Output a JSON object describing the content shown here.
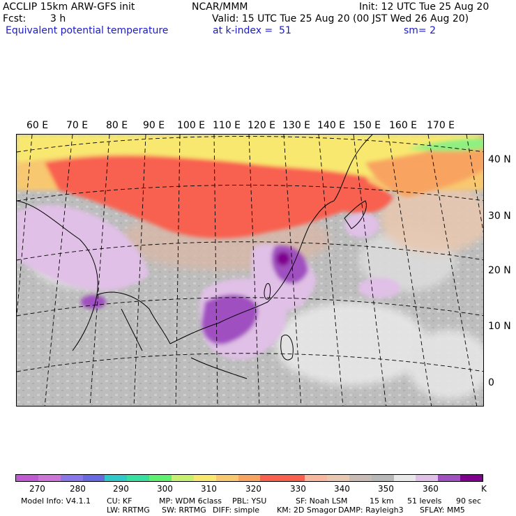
{
  "header": {
    "model": "ACCLIP 15km ARW-GFS init",
    "org": "NCAR/MMM",
    "init": "Init: 12 UTC Tue 25 Aug 20",
    "fcst_label": "Fcst:",
    "fcst_value": "3 h",
    "valid": "Valid: 15 UTC Tue 25 Aug 20 (00 JST Wed 26 Aug 20)",
    "field": "Equivalent potential temperature",
    "level": "at k-index =  51",
    "smoothing": "sm= 2"
  },
  "lon_labels": [
    "60 E",
    "70 E",
    "80 E",
    "90 E",
    "100 E",
    "110 E",
    "120 E",
    "130 E",
    "140 E",
    "150 E",
    "160 E",
    "170 E"
  ],
  "lat_labels": [
    "40 N",
    "30 N",
    "20 N",
    "10 N",
    "0"
  ],
  "colorbar": {
    "colors": [
      "#c05ad0",
      "#cc75d6",
      "#8a78e8",
      "#6a6ae0",
      "#30c8c8",
      "#37e0a0",
      "#60f070",
      "#c8f070",
      "#f8e870",
      "#f8c870",
      "#f8a460",
      "#f86050",
      "#f86050",
      "#f8b8a0",
      "#e8c8b0",
      "#c8bcb4",
      "#b8b8b8",
      "#e8e8e8",
      "#e0c0e6",
      "#a050c0",
      "#800090"
    ],
    "ticks": [
      "270",
      "280",
      "290",
      "300",
      "310",
      "320",
      "330",
      "340",
      "350",
      "360"
    ],
    "unit": "K"
  },
  "footer": {
    "line1": [
      "Model Info: V4.1.1",
      "CU: KF",
      "MP: WDM 6class",
      "PBL: YSU",
      "SF: Noah LSM",
      "15 km",
      "51 levels",
      "90 sec"
    ],
    "line2": [
      "LW: RRTMG",
      "SW: RRTMG",
      "DIFF: simple",
      "KM: 2D Smagor",
      "DAMP: Rayleigh3",
      "SFLAY: MM5"
    ]
  }
}
